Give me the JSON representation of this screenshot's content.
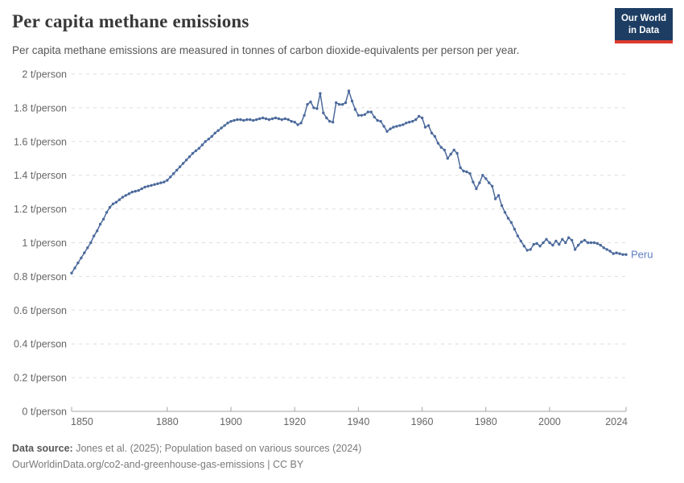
{
  "header": {
    "title": "Per capita methane emissions",
    "subtitle": "Per capita methane emissions are measured in tonnes of carbon dioxide-equivalents per person per year.",
    "logo": {
      "line1": "Our World",
      "line2": "in Data",
      "bg_color": "#1d3d63",
      "accent_color": "#dc3a2d"
    }
  },
  "chart_data": {
    "type": "line",
    "title": "Per capita methane emissions",
    "unit": "t/person",
    "xlim": [
      1850,
      2024
    ],
    "ylim": [
      0,
      2
    ],
    "grid": "horizontal-dashed",
    "grid_color": "#dedede",
    "axis_color": "#a5a5a5",
    "tick_label_color": "#666666",
    "x_ticks": [
      1850,
      1880,
      1900,
      1920,
      1940,
      1960,
      1980,
      2000,
      2024
    ],
    "y_tick_values": [
      0,
      0.2,
      0.4,
      0.6,
      0.8,
      1,
      1.2,
      1.4,
      1.6,
      1.8,
      2
    ],
    "y_tick_labels": [
      "0 t/person",
      "0.2 t/person",
      "0.4 t/person",
      "0.6 t/person",
      "0.8 t/person",
      "1 t/person",
      "1.2 t/person",
      "1.4 t/person",
      "1.6 t/person",
      "1.8 t/person",
      "2 t/person"
    ],
    "series": [
      {
        "name": "Peru",
        "color": "#4c6a9c",
        "label_color": "#5d7ec2",
        "start_year": 1850,
        "values": [
          0.82,
          0.85,
          0.88,
          0.91,
          0.94,
          0.97,
          1.0,
          1.04,
          1.07,
          1.11,
          1.14,
          1.18,
          1.21,
          1.23,
          1.24,
          1.255,
          1.27,
          1.28,
          1.29,
          1.3,
          1.305,
          1.31,
          1.32,
          1.33,
          1.335,
          1.34,
          1.345,
          1.35,
          1.355,
          1.36,
          1.37,
          1.39,
          1.41,
          1.43,
          1.45,
          1.47,
          1.49,
          1.51,
          1.53,
          1.545,
          1.56,
          1.58,
          1.6,
          1.615,
          1.63,
          1.65,
          1.665,
          1.68,
          1.695,
          1.71,
          1.72,
          1.725,
          1.73,
          1.73,
          1.725,
          1.73,
          1.73,
          1.725,
          1.73,
          1.735,
          1.74,
          1.735,
          1.73,
          1.735,
          1.74,
          1.735,
          1.73,
          1.735,
          1.73,
          1.72,
          1.715,
          1.7,
          1.71,
          1.755,
          1.82,
          1.835,
          1.8,
          1.795,
          1.885,
          1.77,
          1.74,
          1.72,
          1.715,
          1.83,
          1.82,
          1.82,
          1.83,
          1.9,
          1.84,
          1.79,
          1.755,
          1.755,
          1.76,
          1.775,
          1.775,
          1.745,
          1.725,
          1.72,
          1.69,
          1.66,
          1.675,
          1.685,
          1.69,
          1.695,
          1.7,
          1.71,
          1.715,
          1.72,
          1.73,
          1.75,
          1.74,
          1.685,
          1.695,
          1.65,
          1.63,
          1.59,
          1.565,
          1.55,
          1.5,
          1.525,
          1.55,
          1.53,
          1.445,
          1.425,
          1.42,
          1.41,
          1.36,
          1.32,
          1.355,
          1.4,
          1.38,
          1.355,
          1.335,
          1.26,
          1.28,
          1.22,
          1.18,
          1.145,
          1.12,
          1.08,
          1.04,
          1.01,
          0.98,
          0.955,
          0.96,
          0.99,
          0.995,
          0.98,
          1.0,
          1.02,
          1.0,
          0.985,
          1.01,
          0.99,
          1.02,
          1.0,
          1.03,
          1.015,
          0.96,
          0.985,
          1.005,
          1.015,
          1.0,
          1.0,
          1.0,
          0.995,
          0.985,
          0.97,
          0.96,
          0.95,
          0.935,
          0.94,
          0.935,
          0.93,
          0.93
        ]
      }
    ]
  },
  "footer": {
    "source_label": "Data source:",
    "source_text": " Jones et al. (2025); Population based on various sources (2024)",
    "url_line": "OurWorldinData.org/co2-and-greenhouse-gas-emissions | CC BY"
  }
}
